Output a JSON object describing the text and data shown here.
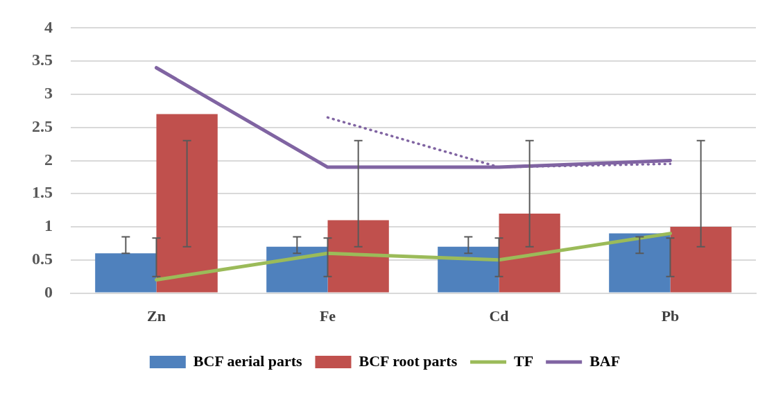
{
  "chart_data": {
    "type": "bar",
    "categories": [
      "Zn",
      "Fe",
      "Cd",
      "Pb"
    ],
    "series": [
      {
        "name": "BCF aerial parts",
        "color": "#4f81bd",
        "values": [
          0.6,
          0.7,
          0.7,
          0.9
        ],
        "errors": [
          [
            0.6,
            0.85
          ],
          [
            0.6,
            0.85
          ],
          [
            0.6,
            0.85
          ],
          [
            0.6,
            0.85
          ]
        ]
      },
      {
        "name": "BCF root parts",
        "color": "#c0504d",
        "values": [
          2.7,
          1.1,
          1.2,
          1.0
        ],
        "errors": [
          [
            0.7,
            2.3
          ],
          [
            0.7,
            2.3
          ],
          [
            0.7,
            2.3
          ],
          [
            0.7,
            2.3
          ]
        ]
      },
      {
        "name": "TF",
        "type": "line",
        "color": "#9bbb59",
        "values": [
          0.2,
          0.6,
          0.5,
          0.9
        ],
        "errors": [
          [
            0.25,
            0.83
          ],
          [
            0.25,
            0.83
          ],
          [
            0.25,
            0.83
          ],
          [
            0.25,
            0.83
          ]
        ]
      },
      {
        "name": "BAF",
        "type": "line",
        "color": "#8064a2",
        "values": [
          3.4,
          1.9,
          1.9,
          2.0
        ]
      },
      {
        "type": "line",
        "color": "#8064a2",
        "line_style": "dotted",
        "values": [
          null,
          2.65,
          1.9,
          1.95
        ]
      }
    ],
    "ylim": [
      0,
      4
    ],
    "yticks": [
      0,
      0.5,
      1,
      1.5,
      2,
      2.5,
      3,
      3.5,
      4
    ],
    "grid": "y",
    "legend": "bottom",
    "marker": "none",
    "line_style": "solid"
  }
}
